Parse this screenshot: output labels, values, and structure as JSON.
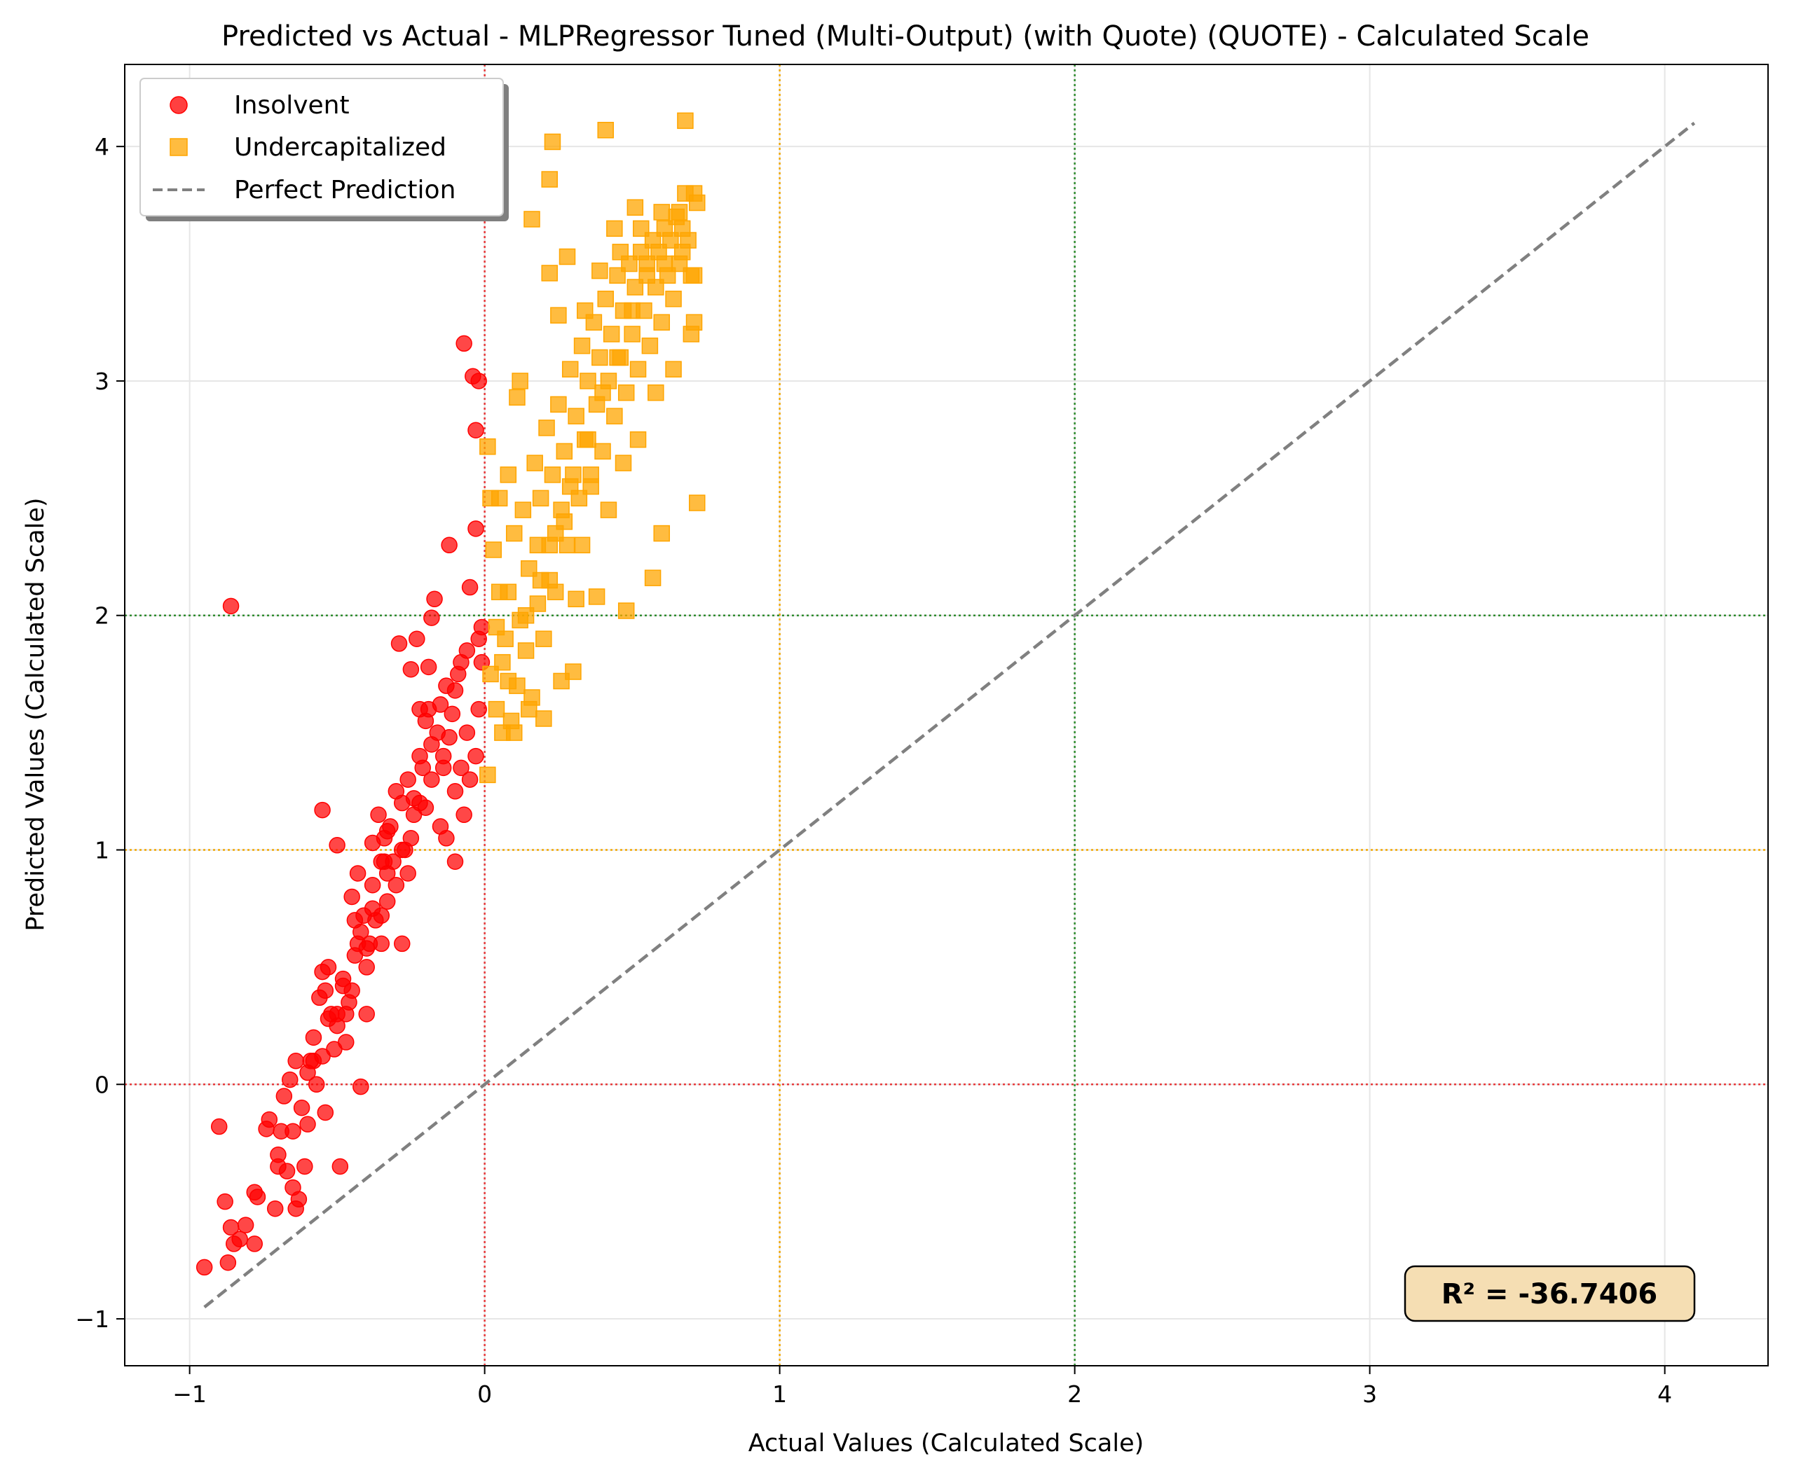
{
  "chart_data": {
    "type": "scatter",
    "title": "Predicted vs Actual - MLPRegressor Tuned (Multi-Output) (with Quote) (QUOTE) - Calculated Scale",
    "xlabel": "Actual Values (Calculated Scale)",
    "ylabel": "Predicted Values (Calculated Scale)",
    "xlim": [
      -1.22,
      4.35
    ],
    "ylim": [
      -1.2,
      4.35
    ],
    "xticks": [
      -1,
      0,
      1,
      2,
      3,
      4
    ],
    "yticks": [
      -1,
      0,
      1,
      2,
      3,
      4
    ],
    "xtick_labels": [
      "−1",
      "0",
      "1",
      "2",
      "3",
      "4"
    ],
    "ytick_labels": [
      "−1",
      "0",
      "1",
      "2",
      "3",
      "4"
    ],
    "grid": true,
    "legend_position": "top-left",
    "reference_lines": {
      "vertical": [
        {
          "x": 0,
          "color": "#e6393a"
        },
        {
          "x": 1,
          "color": "#f0a500"
        },
        {
          "x": 2,
          "color": "#2e8b2e"
        }
      ],
      "horizontal": [
        {
          "y": 0,
          "color": "#e6393a"
        },
        {
          "y": 1,
          "color": "#f0a500"
        },
        {
          "y": 2,
          "color": "#2e8b2e"
        }
      ]
    },
    "diagonal": {
      "name": "Perfect Prediction",
      "from": [
        -0.95,
        -0.95
      ],
      "to": [
        4.1,
        4.1
      ],
      "color": "#808080"
    },
    "annotation": "R² = -36.7406",
    "series": [
      {
        "name": "Insolvent",
        "marker": "circle",
        "color": "#ff0000",
        "points": [
          [
            -0.95,
            -0.78
          ],
          [
            -0.9,
            -0.18
          ],
          [
            -0.88,
            -0.5
          ],
          [
            -0.87,
            -0.76
          ],
          [
            -0.86,
            -0.61
          ],
          [
            -0.85,
            -0.68
          ],
          [
            -0.83,
            -0.66
          ],
          [
            -0.81,
            -0.6
          ],
          [
            -0.78,
            -0.68
          ],
          [
            -0.78,
            -0.46
          ],
          [
            -0.77,
            -0.48
          ],
          [
            -0.74,
            -0.19
          ],
          [
            -0.73,
            -0.15
          ],
          [
            -0.71,
            -0.53
          ],
          [
            -0.7,
            -0.35
          ],
          [
            -0.69,
            -0.2
          ],
          [
            -0.68,
            -0.05
          ],
          [
            -0.67,
            -0.37
          ],
          [
            -0.66,
            0.02
          ],
          [
            -0.65,
            -0.44
          ],
          [
            -0.64,
            -0.53
          ],
          [
            -0.63,
            -0.49
          ],
          [
            -0.62,
            -0.1
          ],
          [
            -0.61,
            -0.35
          ],
          [
            -0.6,
            -0.17
          ],
          [
            -0.59,
            0.1
          ],
          [
            -0.58,
            0.2
          ],
          [
            -0.57,
            0.0
          ],
          [
            -0.56,
            0.37
          ],
          [
            -0.55,
            0.48
          ],
          [
            -0.54,
            -0.12
          ],
          [
            -0.53,
            0.5
          ],
          [
            -0.52,
            0.3
          ],
          [
            -0.51,
            0.15
          ],
          [
            -0.5,
            0.25
          ],
          [
            -0.49,
            -0.35
          ],
          [
            -0.48,
            0.42
          ],
          [
            -0.47,
            0.18
          ],
          [
            -0.46,
            0.35
          ],
          [
            -0.45,
            0.8
          ],
          [
            -0.44,
            0.55
          ],
          [
            -0.43,
            0.9
          ],
          [
            -0.42,
            0.65
          ],
          [
            -0.41,
            0.72
          ],
          [
            -0.4,
            0.5
          ],
          [
            -0.39,
            0.6
          ],
          [
            -0.38,
            0.85
          ],
          [
            -0.37,
            0.7
          ],
          [
            -0.36,
            1.15
          ],
          [
            -0.35,
            0.95
          ],
          [
            -0.34,
            1.05
          ],
          [
            -0.33,
            0.78
          ],
          [
            -0.32,
            1.1
          ],
          [
            -0.31,
            0.95
          ],
          [
            -0.3,
            1.25
          ],
          [
            -0.29,
            1.88
          ],
          [
            -0.28,
            1.2
          ],
          [
            -0.27,
            1.0
          ],
          [
            -0.26,
            1.3
          ],
          [
            -0.25,
            1.77
          ],
          [
            -0.24,
            1.22
          ],
          [
            -0.23,
            1.9
          ],
          [
            -0.22,
            1.4
          ],
          [
            -0.21,
            1.35
          ],
          [
            -0.2,
            1.55
          ],
          [
            -0.19,
            1.6
          ],
          [
            -0.18,
            1.45
          ],
          [
            -0.17,
            2.07
          ],
          [
            -0.16,
            1.5
          ],
          [
            -0.15,
            1.62
          ],
          [
            -0.14,
            1.4
          ],
          [
            -0.13,
            1.7
          ],
          [
            -0.12,
            2.3
          ],
          [
            -0.11,
            1.58
          ],
          [
            -0.1,
            1.68
          ],
          [
            -0.09,
            1.75
          ],
          [
            -0.08,
            1.8
          ],
          [
            -0.07,
            3.16
          ],
          [
            -0.06,
            1.85
          ],
          [
            -0.05,
            2.12
          ],
          [
            -0.04,
            3.02
          ],
          [
            -0.03,
            2.37
          ],
          [
            -0.02,
            1.9
          ],
          [
            -0.01,
            1.95
          ],
          [
            -0.03,
            2.79
          ],
          [
            -0.02,
            3.0
          ],
          [
            -0.1,
            1.25
          ],
          [
            -0.15,
            1.1
          ],
          [
            -0.2,
            1.18
          ],
          [
            -0.25,
            1.05
          ],
          [
            -0.3,
            0.85
          ],
          [
            -0.35,
            0.72
          ],
          [
            -0.4,
            0.58
          ],
          [
            -0.45,
            0.4
          ],
          [
            -0.5,
            0.3
          ],
          [
            -0.55,
            0.12
          ],
          [
            -0.6,
            0.05
          ],
          [
            -0.65,
            -0.2
          ],
          [
            -0.7,
            -0.3
          ],
          [
            -0.05,
            1.3
          ],
          [
            -0.08,
            1.35
          ],
          [
            -0.12,
            1.48
          ],
          [
            -0.18,
            1.3
          ],
          [
            -0.22,
            1.2
          ],
          [
            -0.28,
            1.0
          ],
          [
            -0.33,
            0.9
          ],
          [
            -0.38,
            0.75
          ],
          [
            -0.43,
            0.6
          ],
          [
            -0.48,
            0.45
          ],
          [
            -0.53,
            0.28
          ],
          [
            -0.58,
            0.1
          ],
          [
            -0.02,
            1.6
          ],
          [
            -0.06,
            1.5
          ],
          [
            -0.14,
            1.35
          ],
          [
            -0.24,
            1.15
          ],
          [
            -0.34,
            0.95
          ],
          [
            -0.44,
            0.7
          ],
          [
            -0.54,
            0.4
          ],
          [
            -0.64,
            0.1
          ],
          [
            -0.86,
            2.04
          ],
          [
            -0.55,
            1.17
          ],
          [
            -0.5,
            1.02
          ],
          [
            -0.47,
            0.3
          ],
          [
            -0.42,
            -0.01
          ],
          [
            -0.4,
            0.3
          ],
          [
            -0.38,
            1.03
          ],
          [
            -0.35,
            0.6
          ],
          [
            -0.33,
            1.08
          ],
          [
            -0.28,
            0.6
          ],
          [
            -0.26,
            0.9
          ],
          [
            -0.22,
            1.6
          ],
          [
            -0.19,
            1.78
          ],
          [
            -0.18,
            1.99
          ],
          [
            -0.13,
            1.05
          ],
          [
            -0.1,
            0.95
          ],
          [
            -0.07,
            1.15
          ],
          [
            -0.03,
            1.4
          ],
          [
            -0.01,
            1.8
          ]
        ]
      },
      {
        "name": "Undercapitalized",
        "marker": "square",
        "color": "#ffa500",
        "points": [
          [
            0.01,
            1.32
          ],
          [
            0.02,
            1.75
          ],
          [
            0.03,
            2.28
          ],
          [
            0.04,
            1.6
          ],
          [
            0.05,
            2.5
          ],
          [
            0.06,
            1.5
          ],
          [
            0.07,
            1.9
          ],
          [
            0.08,
            2.1
          ],
          [
            0.09,
            1.55
          ],
          [
            0.1,
            2.35
          ],
          [
            0.11,
            1.7
          ],
          [
            0.12,
            1.98
          ],
          [
            0.13,
            2.45
          ],
          [
            0.14,
            1.85
          ],
          [
            0.15,
            2.2
          ],
          [
            0.16,
            1.65
          ],
          [
            0.17,
            2.65
          ],
          [
            0.18,
            2.05
          ],
          [
            0.19,
            2.5
          ],
          [
            0.2,
            1.9
          ],
          [
            0.21,
            2.8
          ],
          [
            0.22,
            2.3
          ],
          [
            0.23,
            2.6
          ],
          [
            0.24,
            2.1
          ],
          [
            0.25,
            2.9
          ],
          [
            0.26,
            2.45
          ],
          [
            0.27,
            2.7
          ],
          [
            0.28,
            2.3
          ],
          [
            0.29,
            3.05
          ],
          [
            0.3,
            2.6
          ],
          [
            0.31,
            2.85
          ],
          [
            0.32,
            2.5
          ],
          [
            0.33,
            3.15
          ],
          [
            0.34,
            2.75
          ],
          [
            0.35,
            3.0
          ],
          [
            0.36,
            2.6
          ],
          [
            0.37,
            3.25
          ],
          [
            0.38,
            2.9
          ],
          [
            0.39,
            3.1
          ],
          [
            0.4,
            2.7
          ],
          [
            0.41,
            3.35
          ],
          [
            0.42,
            3.0
          ],
          [
            0.43,
            3.2
          ],
          [
            0.44,
            2.85
          ],
          [
            0.45,
            3.45
          ],
          [
            0.46,
            3.1
          ],
          [
            0.47,
            3.3
          ],
          [
            0.48,
            2.95
          ],
          [
            0.49,
            3.5
          ],
          [
            0.5,
            3.2
          ],
          [
            0.51,
            3.4
          ],
          [
            0.52,
            3.05
          ],
          [
            0.53,
            3.55
          ],
          [
            0.54,
            3.3
          ],
          [
            0.55,
            3.5
          ],
          [
            0.56,
            3.15
          ],
          [
            0.57,
            3.6
          ],
          [
            0.58,
            3.4
          ],
          [
            0.59,
            3.55
          ],
          [
            0.6,
            3.25
          ],
          [
            0.61,
            3.65
          ],
          [
            0.62,
            3.45
          ],
          [
            0.63,
            3.6
          ],
          [
            0.64,
            3.35
          ],
          [
            0.65,
            3.7
          ],
          [
            0.66,
            3.5
          ],
          [
            0.67,
            3.65
          ],
          [
            0.68,
            3.8
          ],
          [
            0.69,
            3.6
          ],
          [
            0.7,
            3.45
          ],
          [
            0.71,
            3.8
          ],
          [
            0.72,
            3.76
          ],
          [
            0.72,
            2.48
          ],
          [
            0.71,
            3.25
          ],
          [
            0.6,
            2.35
          ],
          [
            0.57,
            2.16
          ],
          [
            0.48,
            2.02
          ],
          [
            0.38,
            2.08
          ],
          [
            0.31,
            2.07
          ],
          [
            0.3,
            1.76
          ],
          [
            0.26,
            1.72
          ],
          [
            0.2,
            1.56
          ],
          [
            0.15,
            1.6
          ],
          [
            0.1,
            1.5
          ],
          [
            0.23,
            4.02
          ],
          [
            0.41,
            4.07
          ],
          [
            0.68,
            4.11
          ],
          [
            0.22,
            3.86
          ],
          [
            0.16,
            3.69
          ],
          [
            0.22,
            3.46
          ],
          [
            0.28,
            3.53
          ],
          [
            0.44,
            3.65
          ],
          [
            0.51,
            3.74
          ],
          [
            0.11,
            2.93
          ],
          [
            0.12,
            3.0
          ],
          [
            0.08,
            2.6
          ],
          [
            0.01,
            2.72
          ],
          [
            0.02,
            2.5
          ],
          [
            0.05,
            2.1
          ],
          [
            0.04,
            1.95
          ],
          [
            0.06,
            1.8
          ],
          [
            0.08,
            1.72
          ],
          [
            0.18,
            2.3
          ],
          [
            0.22,
            2.15
          ],
          [
            0.27,
            2.4
          ],
          [
            0.33,
            2.3
          ],
          [
            0.36,
            2.55
          ],
          [
            0.42,
            2.45
          ],
          [
            0.47,
            2.65
          ],
          [
            0.52,
            2.75
          ],
          [
            0.58,
            2.95
          ],
          [
            0.64,
            3.05
          ],
          [
            0.7,
            3.2
          ],
          [
            0.25,
            3.28
          ],
          [
            0.34,
            3.3
          ],
          [
            0.39,
            3.47
          ],
          [
            0.46,
            3.55
          ],
          [
            0.53,
            3.65
          ],
          [
            0.6,
            3.72
          ],
          [
            0.66,
            3.72
          ],
          [
            0.14,
            2.0
          ],
          [
            0.19,
            2.15
          ],
          [
            0.24,
            2.35
          ],
          [
            0.29,
            2.55
          ],
          [
            0.35,
            2.75
          ],
          [
            0.4,
            2.95
          ],
          [
            0.45,
            3.1
          ],
          [
            0.5,
            3.3
          ],
          [
            0.55,
            3.45
          ],
          [
            0.61,
            3.5
          ],
          [
            0.67,
            3.55
          ],
          [
            0.71,
            3.45
          ]
        ]
      }
    ]
  }
}
